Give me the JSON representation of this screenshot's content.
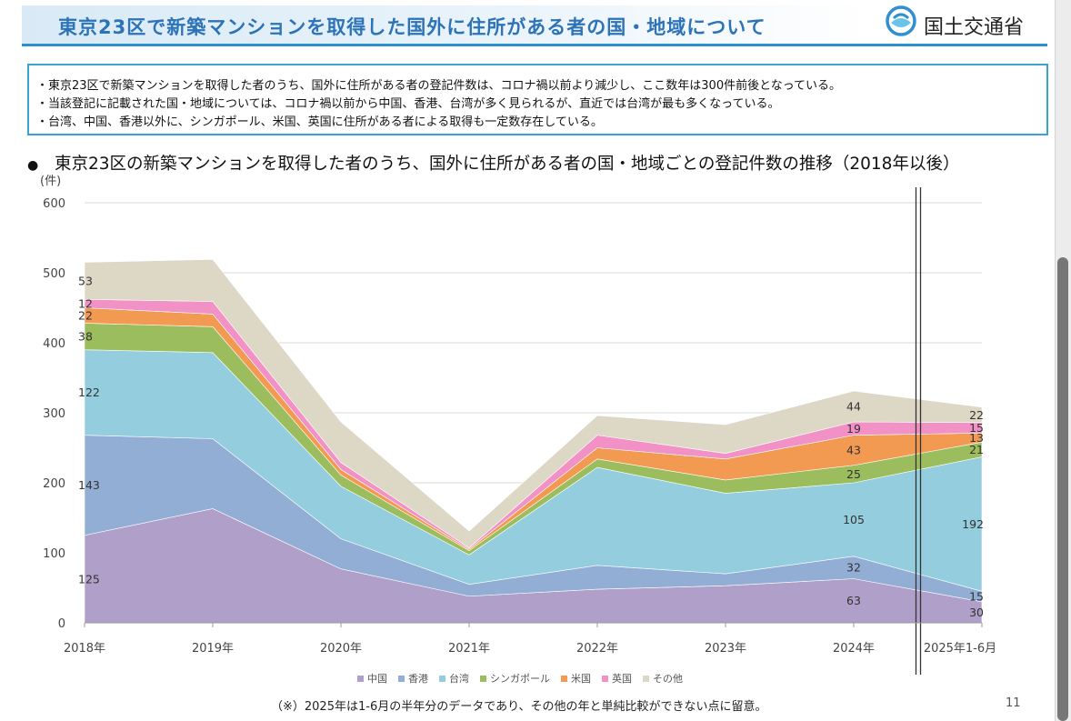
{
  "header": {
    "title": "東京23区で新築マンションを取得した国外に住所がある者の国・地域について",
    "ministry": "国土交通省",
    "logo_icon": "mlit-logo-icon"
  },
  "summary": [
    "・東京23区で新築マンションを取得した者のうち、国外に住所がある者の登記件数は、コロナ禍以前より減少し、ここ数年は300件前後となっている。",
    "・当該登記に記載された国・地域については、コロナ禍以前から中国、香港、台湾が多く見られるが、直近では台湾が最も多くなっている。",
    "・台湾、中国、香港以外に、シンガポール、米国、英国に住所がある者による取得も一定数存在している。"
  ],
  "chart_heading": "東京23区の新築マンションを取得した者のうち、国外に住所がある者の国・地域ごとの登記件数の推移（2018年以後）",
  "chart_data": {
    "type": "area",
    "stacked": true,
    "categories": [
      "2018年",
      "2019年",
      "2020年",
      "2021年",
      "2022年",
      "2023年",
      "2024年",
      "2025年1-6月"
    ],
    "unit_label": "(件)",
    "ylim": [
      0,
      600
    ],
    "yticks": [
      0,
      100,
      200,
      300,
      400,
      500,
      600
    ],
    "grid": true,
    "legend_position": "bottom",
    "series": [
      {
        "name": "中国",
        "color": "#b09fc8",
        "values": [
          125,
          163,
          77,
          38,
          48,
          53,
          63,
          30
        ]
      },
      {
        "name": "香港",
        "color": "#93aed5",
        "values": [
          143,
          100,
          43,
          17,
          34,
          17,
          32,
          15
        ]
      },
      {
        "name": "台湾",
        "color": "#94cddd",
        "values": [
          122,
          123,
          75,
          42,
          140,
          115,
          105,
          192
        ]
      },
      {
        "name": "シンガポール",
        "color": "#9cbd5e",
        "values": [
          38,
          37,
          16,
          6,
          12,
          19,
          25,
          21
        ]
      },
      {
        "name": "米国",
        "color": "#f39a52",
        "values": [
          22,
          18,
          8,
          2,
          16,
          30,
          43,
          13
        ]
      },
      {
        "name": "英国",
        "color": "#f291c6",
        "values": [
          12,
          18,
          10,
          2,
          18,
          8,
          19,
          15
        ]
      },
      {
        "name": "その他",
        "color": "#ddd7c6",
        "values": [
          53,
          60,
          58,
          24,
          28,
          41,
          44,
          22
        ]
      }
    ],
    "data_labels": [
      {
        "category": "2018年",
        "series": "中国",
        "text": "125"
      },
      {
        "category": "2018年",
        "series": "香港",
        "text": "143"
      },
      {
        "category": "2018年",
        "series": "台湾",
        "text": "122"
      },
      {
        "category": "2018年",
        "series": "シンガポール",
        "text": "38"
      },
      {
        "category": "2018年",
        "series": "米国",
        "text": "22"
      },
      {
        "category": "2018年",
        "series": "英国",
        "text": "12"
      },
      {
        "category": "2018年",
        "series": "その他",
        "text": "53"
      },
      {
        "category": "2024年",
        "series": "中国",
        "text": "63"
      },
      {
        "category": "2024年",
        "series": "香港",
        "text": "32"
      },
      {
        "category": "2024年",
        "series": "台湾",
        "text": "105"
      },
      {
        "category": "2024年",
        "series": "シンガポール",
        "text": "25"
      },
      {
        "category": "2024年",
        "series": "米国",
        "text": "43"
      },
      {
        "category": "2024年",
        "series": "英国",
        "text": "19"
      },
      {
        "category": "2024年",
        "series": "その他",
        "text": "44"
      },
      {
        "category": "2025年1-6月",
        "series": "中国",
        "text": "30"
      },
      {
        "category": "2025年1-6月",
        "series": "香港",
        "text": "15"
      },
      {
        "category": "2025年1-6月",
        "series": "台湾",
        "text": "192"
      },
      {
        "category": "2025年1-6月",
        "series": "シンガポール",
        "text": "21"
      },
      {
        "category": "2025年1-6月",
        "series": "米国",
        "text": "13"
      },
      {
        "category": "2025年1-6月",
        "series": "英国",
        "text": "15"
      },
      {
        "category": "2025年1-6月",
        "series": "その他",
        "text": "22"
      }
    ]
  },
  "footnote": "（※）2025年は1-6月の半年分のデータであり、その他の年と単純比較ができない点に留意。",
  "page_number": "11"
}
